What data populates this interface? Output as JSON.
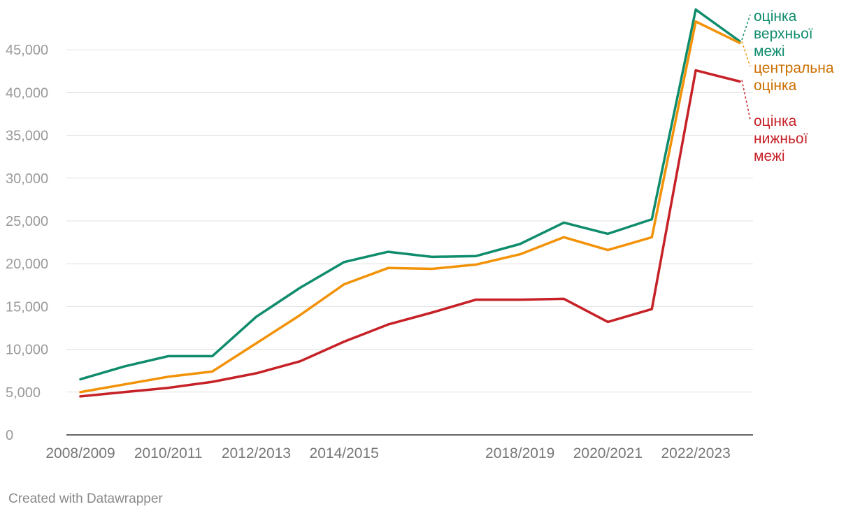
{
  "chart_data": {
    "type": "line",
    "x": [
      "2008/2009",
      "2009/2010",
      "2010/2011",
      "2011/2012",
      "2012/2013",
      "2013/2014",
      "2014/2015",
      "2015/2016",
      "2016/2017",
      "2017/2018",
      "2018/2019",
      "2019/2020",
      "2020/2021",
      "2021/2022",
      "2022/2023",
      "2023/2024"
    ],
    "x_tick_labels": [
      "2008/2009",
      "",
      "2010/2011",
      "",
      "2012/2013",
      "",
      "2014/2015",
      "",
      "",
      "",
      "2018/2019",
      "",
      "2020/2021",
      "",
      "2022/2023",
      ""
    ],
    "ylim": [
      0,
      50000
    ],
    "y_ticks": [
      0,
      5000,
      10000,
      15000,
      20000,
      25000,
      30000,
      35000,
      40000,
      45000
    ],
    "y_tick_labels": [
      "0",
      "5,000",
      "10,000",
      "15,000",
      "20,000",
      "25,000",
      "30,000",
      "35,000",
      "40,000",
      "45,000"
    ],
    "grid": true,
    "legend": "inline-right",
    "series": [
      {
        "name": "оцінка верхньої межі",
        "name_lines": [
          "оцінка",
          "верхньої",
          "межі"
        ],
        "color": "#0f8c6c",
        "values": [
          6500,
          8000,
          9200,
          9200,
          13800,
          17200,
          20200,
          21400,
          20800,
          20900,
          22300,
          24800,
          23500,
          25200,
          49700,
          46000
        ]
      },
      {
        "name": "центральна оцінка",
        "name_lines": [
          "центральна",
          "оцінка"
        ],
        "color": "#f29208",
        "label_color": "#cc6e00",
        "values": [
          5000,
          5900,
          6800,
          7400,
          10700,
          14000,
          17600,
          19500,
          19400,
          19900,
          21100,
          23100,
          21600,
          23100,
          48300,
          45800
        ]
      },
      {
        "name": "оцінка нижньої межі",
        "name_lines": [
          "оцінка",
          "нижньої",
          "межі"
        ],
        "color": "#c62127",
        "values": [
          4500,
          5000,
          5500,
          6200,
          7200,
          8600,
          10900,
          12900,
          14300,
          15800,
          15800,
          15900,
          13200,
          14700,
          42600,
          41300
        ]
      }
    ]
  },
  "footer": {
    "credit": "Created with Datawrapper"
  }
}
